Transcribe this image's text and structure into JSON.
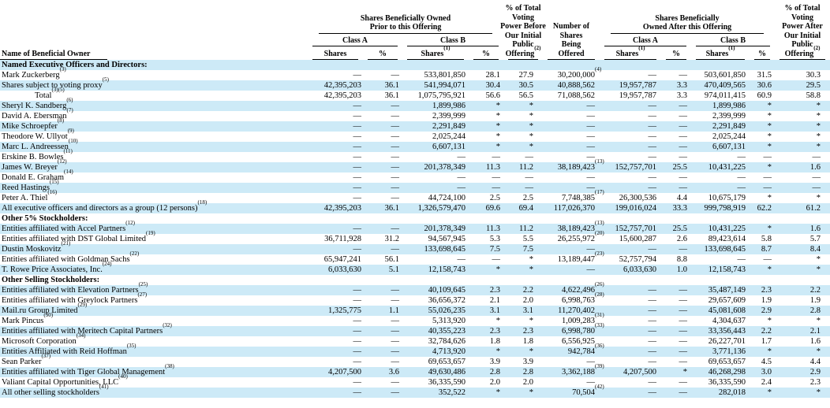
{
  "page": {
    "background_color": "#ffffff",
    "row_highlight_color": "#cdeaf7",
    "text_color": "#000000"
  },
  "table": {
    "header": {
      "name_label": "Name of Beneficial Owner",
      "prior_group_lines": [
        "Shares Beneficially Owned",
        "Prior to this Offering"
      ],
      "after_group_lines": [
        "Shares Beneficially",
        "Owned After this Offering"
      ],
      "class_a_label": "Class A",
      "class_b_label": "Class B",
      "voting_before_lines": [
        "% of Total",
        "Voting",
        "Power Before",
        "Our Initial",
        "Public",
        "Offering^(2)^"
      ],
      "offered_lines": [
        "Number of",
        "Shares",
        "Being",
        "Offered"
      ],
      "voting_after_lines": [
        "% of Total",
        "Voting",
        "Power After",
        "Our Initial",
        "Public",
        "Offering^(2)^"
      ],
      "prior_class_a_shares": "Shares",
      "prior_class_a_pct": "%",
      "prior_class_b_shares": "Shares^(1)^",
      "prior_class_b_pct": "%",
      "after_class_a_shares": "Shares^(1)^",
      "after_class_a_pct": "%",
      "after_class_b_shares": "Shares^(1)^",
      "after_class_b_pct": "%"
    },
    "rows": [
      {
        "type": "section",
        "name": "Named Executive Officers and Directors:"
      },
      {
        "name": "Mark Zuckerberg^(3)^",
        "cells": [
          "—",
          "—",
          "533,801,850",
          "28.1",
          "27.9",
          "30,200,000^(4)^",
          "—",
          "—",
          "503,601,850",
          "31.5",
          "30.3"
        ]
      },
      {
        "name": "Shares subject to voting proxy^(5)^",
        "cells": [
          "42,395,203",
          "36.1",
          "541,994,071",
          "30.4",
          "30.5",
          "40,888,562",
          "19,957,787",
          "3.3",
          "470,409,565",
          "30.6",
          "29.5"
        ]
      },
      {
        "name": "Total^(3)(5)^",
        "indent": true,
        "cells": [
          "42,395,203",
          "36.1",
          "1,075,795,921",
          "56.6",
          "56.5",
          "71,088,562",
          "19,957,787",
          "3.3",
          "974,011,415",
          "60.9",
          "58.8"
        ]
      },
      {
        "name": "Sheryl K. Sandberg^(6)^",
        "cells": [
          "—",
          "—",
          "1,899,986",
          "*",
          "*",
          "—",
          "—",
          "—",
          "1,899,986",
          "*",
          "*"
        ]
      },
      {
        "name": "David A. Ebersman^(7)^",
        "cells": [
          "—",
          "—",
          "2,399,999",
          "*",
          "*",
          "—",
          "—",
          "—",
          "2,399,999",
          "*",
          "*"
        ]
      },
      {
        "name": "Mike Schroepfer^(8)^",
        "cells": [
          "—",
          "—",
          "2,291,849",
          "*",
          "*",
          "—",
          "—",
          "—",
          "2,291,849",
          "*",
          "*"
        ]
      },
      {
        "name": "Theodore W. Ullyot^(9)^",
        "cells": [
          "—",
          "—",
          "2,025,244",
          "*",
          "*",
          "—",
          "—",
          "—",
          "2,025,244",
          "*",
          "*"
        ]
      },
      {
        "name": "Marc L. Andreessen^(10)^",
        "cells": [
          "—",
          "—",
          "6,607,131",
          "*",
          "*",
          "—",
          "—",
          "—",
          "6,607,131",
          "*",
          "*"
        ]
      },
      {
        "name": "Erskine B. Bowles^(11)^",
        "cells": [
          "—",
          "—",
          "—",
          "—",
          "—",
          "—",
          "—",
          "—",
          "—",
          "—",
          "—"
        ]
      },
      {
        "name": "James W. Breyer^(12)^",
        "cells": [
          "—",
          "—",
          "201,378,349",
          "11.3",
          "11.2",
          "38,189,423^(13)^",
          "152,757,701",
          "25.5",
          "10,431,225",
          "*",
          "1.6"
        ]
      },
      {
        "name": "Donald E. Graham^(14)^",
        "cells": [
          "—",
          "—",
          "—",
          "—",
          "—",
          "—",
          "—",
          "—",
          "—",
          "—",
          "—"
        ]
      },
      {
        "name": "Reed Hastings^(15)^",
        "cells": [
          "—",
          "—",
          "—",
          "—",
          "—",
          "—",
          "—",
          "—",
          "—",
          "—",
          "—"
        ]
      },
      {
        "name": "Peter A. Thiel^(16)^",
        "cells": [
          "—",
          "—",
          "44,724,100",
          "2.5",
          "2.5",
          "7,748,385^(17)^",
          "26,300,536",
          "4.4",
          "10,675,179",
          "*",
          "*"
        ]
      },
      {
        "name": "All executive officers and directors as a group (12 persons)^(18)^",
        "cells": [
          "42,395,203",
          "36.1",
          "1,326,579,470",
          "69.6",
          "69.4",
          "117,026,370",
          "199,016,024",
          "33.3",
          "999,798,919",
          "62.2",
          "61.2"
        ]
      },
      {
        "type": "section",
        "name": "Other 5% Stockholders:"
      },
      {
        "name": "Entities affiliated with Accel Partners^(12)^",
        "cells": [
          "—",
          "—",
          "201,378,349",
          "11.3",
          "11.2",
          "38,189,423^(13)^",
          "152,757,701",
          "25.5",
          "10,431,225",
          "*",
          "1.6"
        ]
      },
      {
        "name": "Entities affiliated with DST Global Limited^(19)^",
        "cells": [
          "36,711,928",
          "31.2",
          "94,567,945",
          "5.3",
          "5.5",
          "26,255,972^(20)^",
          "15,600,287",
          "2.6",
          "89,423,614",
          "5.8",
          "5.7"
        ]
      },
      {
        "name": "Dustin Moskovitz^(21)^",
        "cells": [
          "—",
          "—",
          "133,698,645",
          "7.5",
          "7.5",
          "—",
          "—",
          "—",
          "133,698,645",
          "8.7",
          "8.4"
        ]
      },
      {
        "name": "Entities affiliated with Goldman Sachs^(22)^",
        "cells": [
          "65,947,241",
          "56.1",
          "—",
          "—",
          "*",
          "13,189,447^(23)^",
          "52,757,794",
          "8.8",
          "—",
          "—",
          "*"
        ]
      },
      {
        "name": "T. Rowe Price Associates, Inc.^(24)^",
        "cells": [
          "6,033,630",
          "5.1",
          "12,158,743",
          "*",
          "*",
          "—",
          "6,033,630",
          "1.0",
          "12,158,743",
          "*",
          "*"
        ]
      },
      {
        "type": "section",
        "name": "Other Selling Stockholders:"
      },
      {
        "name": "Entities affiliated with Elevation Partners^(25)^",
        "cells": [
          "—",
          "—",
          "40,109,645",
          "2.3",
          "2.2",
          "4,622,496^(26)^",
          "—",
          "—",
          "35,487,149",
          "2.3",
          "2.2"
        ]
      },
      {
        "name": "Entities affiliated with Greylock Partners^(27)^",
        "cells": [
          "—",
          "—",
          "36,656,372",
          "2.1",
          "2.0",
          "6,998,763^(28)^",
          "—",
          "—",
          "29,657,609",
          "1.9",
          "1.9"
        ]
      },
      {
        "name": "Mail.ru Group Limited^(29)^",
        "cells": [
          "1,325,775",
          "1.1",
          "55,026,235",
          "3.1",
          "3.1",
          "11,270,402",
          "—",
          "—",
          "45,081,608",
          "2.9",
          "2.8"
        ]
      },
      {
        "name": "Mark Pincus^(30)^",
        "cells": [
          "—",
          "—",
          "5,313,920",
          "*",
          "*",
          "1,009,283^(31)^",
          "—",
          "—",
          "4,304,637",
          "*",
          "*"
        ]
      },
      {
        "name": "Entities affiliated with Meritech Capital Partners^(32)^",
        "cells": [
          "—",
          "—",
          "40,355,223",
          "2.3",
          "2.3",
          "6,998,780^(33)^",
          "—",
          "—",
          "33,356,443",
          "2.2",
          "2.1"
        ]
      },
      {
        "name": "Microsoft Corporation^(34)^",
        "cells": [
          "—",
          "—",
          "32,784,626",
          "1.8",
          "1.8",
          "6,556,925",
          "—",
          "—",
          "26,227,701",
          "1.7",
          "1.6"
        ]
      },
      {
        "name": "Entities Affiliated with Reid Hoffman^(35)^",
        "cells": [
          "—",
          "—",
          "4,713,920",
          "*",
          "*",
          "942,784^(36)^",
          "—",
          "—",
          "3,771,136",
          "*",
          "*"
        ]
      },
      {
        "name": "Sean Parker^(37)^",
        "cells": [
          "—",
          "—",
          "69,653,657",
          "3.9",
          "3.9",
          "—",
          "—",
          "—",
          "69,653,657",
          "4.5",
          "4.4"
        ]
      },
      {
        "name": "Entities affiliated with Tiger Global Management^(38)^",
        "cells": [
          "4,207,500",
          "3.6",
          "49,630,486",
          "2.8",
          "2.8",
          "3,362,188^(39)^",
          "4,207,500",
          "*",
          "46,268,298",
          "3.0",
          "2.9"
        ]
      },
      {
        "name": "Valiant Capital Opportunities, LLC^(40)^",
        "cells": [
          "—",
          "—",
          "36,335,590",
          "2.0",
          "2.0",
          "—",
          "—",
          "—",
          "36,335,590",
          "2.4",
          "2.3"
        ]
      },
      {
        "name": "All other selling stockholders^(41)^",
        "cells": [
          "—",
          "—",
          "352,522",
          "*",
          "*",
          "70,504^(42)^",
          "—",
          "—",
          "282,018",
          "*",
          "*"
        ]
      }
    ]
  }
}
